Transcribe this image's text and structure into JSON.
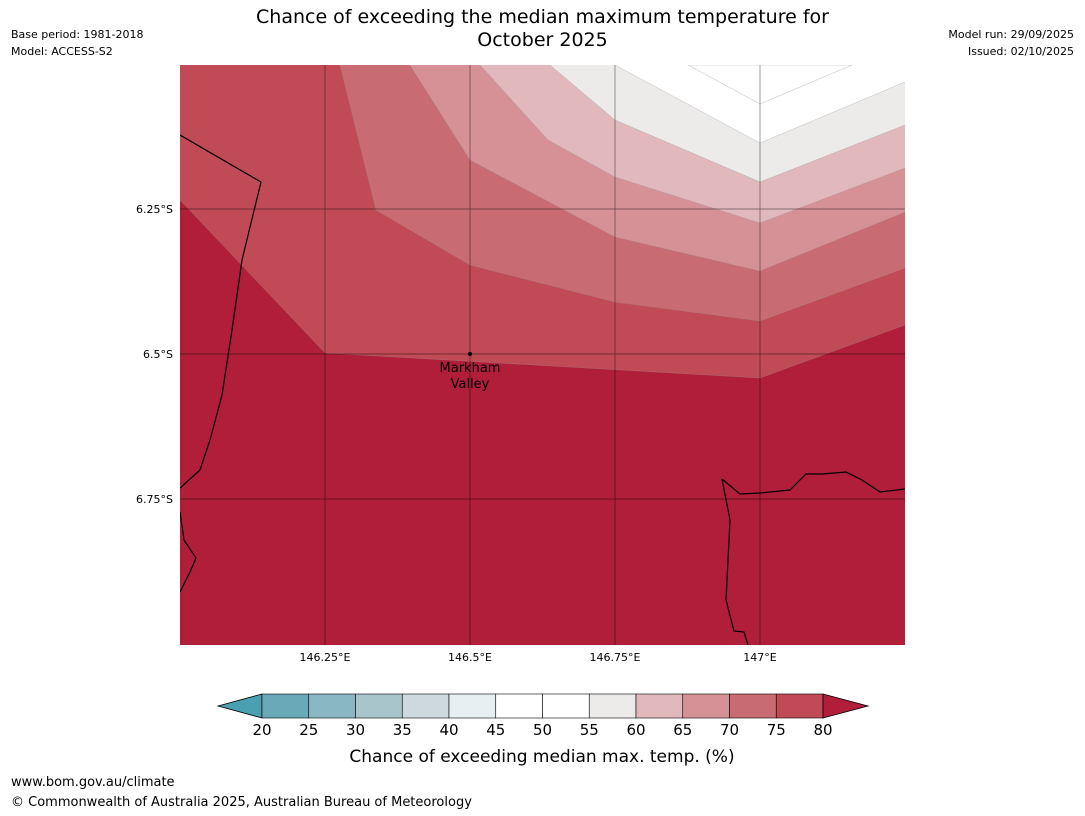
{
  "header": {
    "base_period": "Base period: 1981-2018",
    "model": "Model: ACCESS-S2",
    "title_line1": "Chance of exceeding the median maximum temperature for",
    "title_line2": "October 2025",
    "model_run": "Model run: 29/09/2025",
    "issued": "Issued: 02/10/2025"
  },
  "map": {
    "lat_labels": [
      "6.25°S",
      "6.5°S",
      "6.75°S"
    ],
    "lon_labels": [
      "146.25°E",
      "146.5°E",
      "146.75°E",
      "147°E"
    ],
    "place_label_line1": "Markham",
    "place_label_line2": "Valley",
    "colors": {
      "band_80_plus": "#b01e3a",
      "band_75_80": "#c14a57",
      "band_70_75": "#c96b72",
      "band_65_70": "#d69196",
      "band_60_65": "#e1b8bc",
      "band_55_60": "#ecebea",
      "band_50_55": "#ffffff"
    }
  },
  "colorbar": {
    "tick_labels": [
      "20",
      "25",
      "30",
      "35",
      "40",
      "45",
      "50",
      "55",
      "60",
      "65",
      "70",
      "75",
      "80"
    ],
    "segment_colors": [
      "#6aa9b8",
      "#8ab7c4",
      "#a8c5cc",
      "#ced9dd",
      "#e8eff2",
      "#ffffff",
      "#ffffff",
      "#ecebea",
      "#e1b8bc",
      "#d69196",
      "#c96b72",
      "#c14a57"
    ],
    "under_color": "#4aa0b0",
    "over_color": "#b01e3a",
    "label": "Chance of exceeding median max. temp. (%)"
  },
  "footer": {
    "url": "www.bom.gov.au/climate",
    "copyright": "© Commonwealth of Australia 2025, Australian Bureau of Meteorology"
  }
}
